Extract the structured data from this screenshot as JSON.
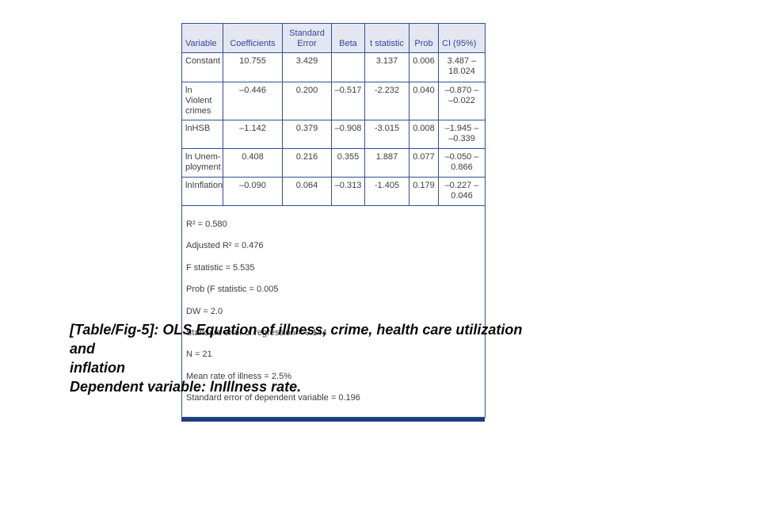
{
  "table": {
    "columns": {
      "variable": "Variable",
      "coefficients": "Coefficients",
      "std_error": "Standard\nError",
      "beta": "Beta",
      "t_statistic": "t statistic",
      "prob": "Prob",
      "ci": "CI (95%)"
    },
    "rows": [
      {
        "variable": "Constant",
        "coefficients": "10.755",
        "std_error": "3.429",
        "beta": "",
        "t_statistic": "3.137",
        "prob": "0.006",
        "ci": "3.487 –\n18.024"
      },
      {
        "variable": "ln Violent\ncrimes",
        "coefficients": "–0.446",
        "std_error": "0.200",
        "beta": "–0.517",
        "t_statistic": "-2.232",
        "prob": "0.040",
        "ci": "–0.870 –\n–0.022"
      },
      {
        "variable": "lnHSB",
        "coefficients": "–1.142",
        "std_error": "0.379",
        "beta": "–0.908",
        "t_statistic": "-3.015",
        "prob": "0.008",
        "ci": "–1.945 –\n–0.339"
      },
      {
        "variable": "ln Unem-\nployment",
        "coefficients": "0.408",
        "std_error": "0.216",
        "beta": "0.355",
        "t_statistic": "1.887",
        "prob": "0.077",
        "ci": "–0.050 –\n0.866"
      },
      {
        "variable": "lnInflation",
        "coefficients": "–0.090",
        "std_error": "0.064",
        "beta": "–0.313",
        "t_statistic": "-1.405",
        "prob": "0.179",
        "ci": "–0.227 –\n0.046"
      }
    ],
    "notes": [
      "R² = 0.580",
      "Adjusted R² = 0.476",
      "F statistic = 5.535",
      "Prob (F statistic = 0.005",
      "DW = 2.0",
      "Standard error of regression = 0.144",
      "N = 21",
      "Mean rate of illness = 2.5%",
      "Standard error of dependent variable = 0.196"
    ]
  },
  "caption": {
    "lines": [
      "[Table/Fig-5]: OLS Equation of illness, crime, health care utilization",
      "and",
      "inflation",
      "Dependent variable: lnIllness rate."
    ]
  },
  "colors": {
    "border": "#31508f",
    "header_bg": "#e4e7f1",
    "header_text": "#3247a0",
    "body_text": "#3d3d3d",
    "bottom_bar": "#1d3e7d"
  }
}
